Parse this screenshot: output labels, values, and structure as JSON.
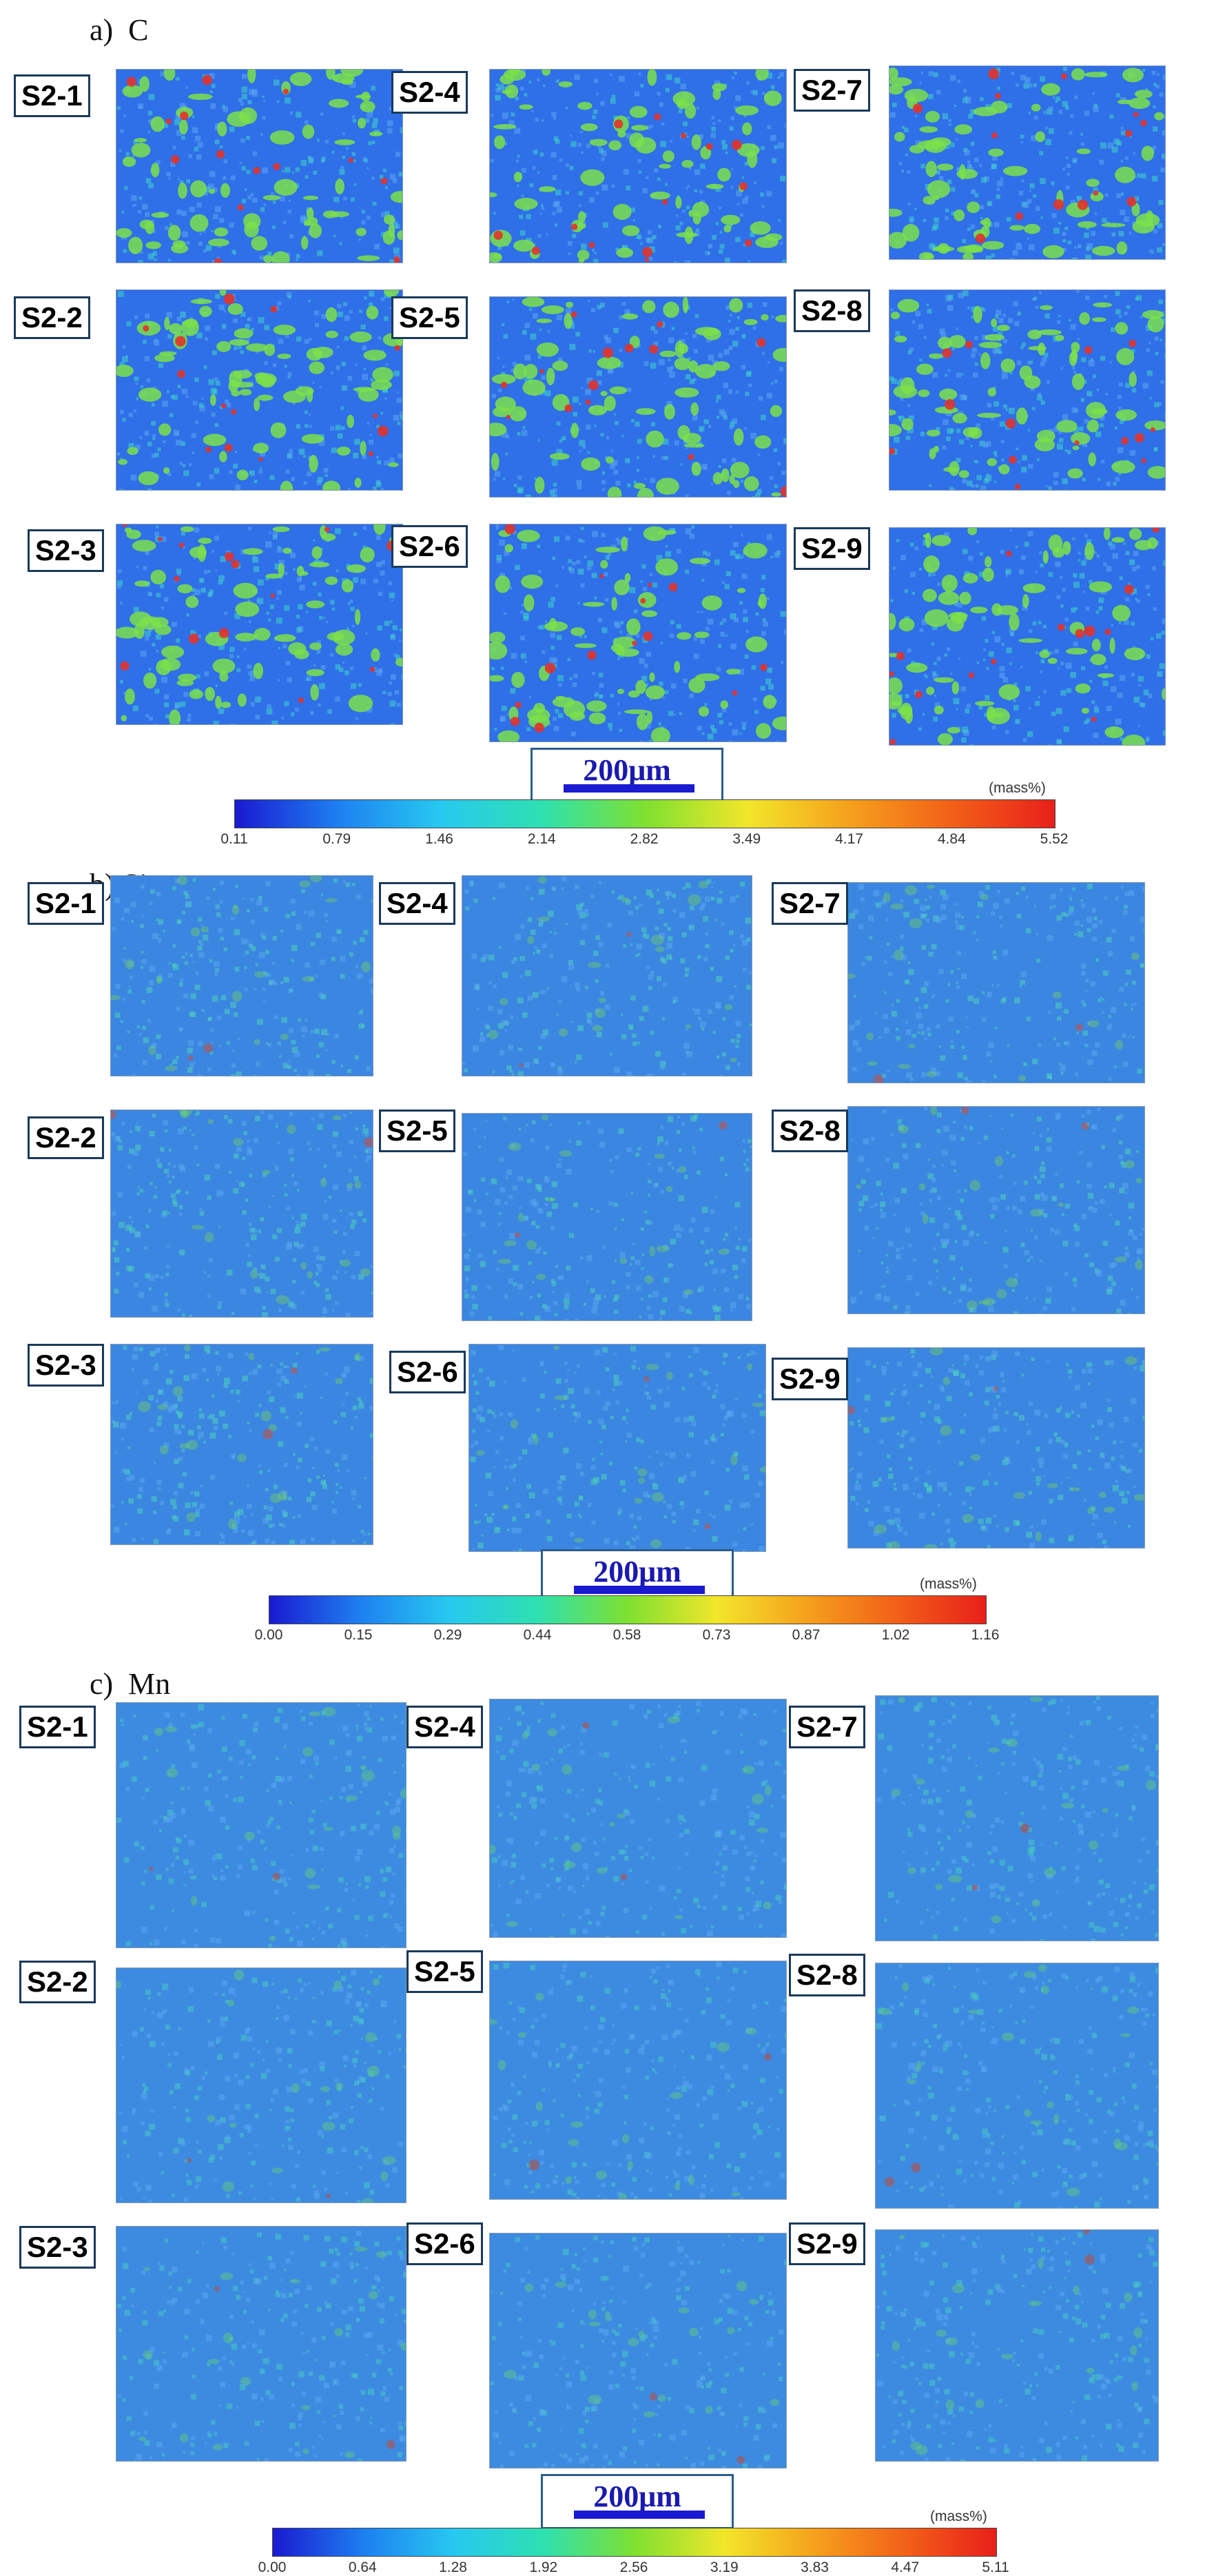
{
  "panels": [
    {
      "heading": "a)  C",
      "labels": [
        "S2-1",
        "S2-4",
        "S2-7",
        "S2-2",
        "S2-5",
        "S2-8",
        "S2-3",
        "S2-6",
        "S2-9"
      ],
      "scale_bar": "200μm",
      "colorbar": {
        "ticks": [
          "0.11",
          "0.79",
          "1.46",
          "2.14",
          "2.82",
          "3.49",
          "4.17",
          "4.84",
          "5.52"
        ],
        "unit": "(mass%)"
      },
      "colors": {
        "base": "#2f6fe8",
        "mid": "#3fd3c8",
        "phase": "#7be04a",
        "hot": "#e2332a"
      }
    },
    {
      "heading": "b) Si",
      "labels": [
        "S2-1",
        "S2-4",
        "S2-7",
        "S2-2",
        "S2-5",
        "S2-8",
        "S2-3",
        "S2-6",
        "S2-9"
      ],
      "scale_bar": "200μm",
      "colorbar": {
        "ticks": [
          "0.00",
          "0.15",
          "0.29",
          "0.44",
          "0.58",
          "0.73",
          "0.87",
          "1.02",
          "1.16"
        ],
        "unit": "(mass%)"
      },
      "colors": {
        "base": "#3b86e0",
        "mid": "#4ed0c0",
        "phase": "#6fcf6a",
        "hot": "#d94a2a"
      }
    },
    {
      "heading": "c)  Mn",
      "labels": [
        "S2-1",
        "S2-4",
        "S2-7",
        "S2-2",
        "S2-5",
        "S2-8",
        "S2-3",
        "S2-6",
        "S2-9"
      ],
      "scale_bar": "200μm",
      "colorbar": {
        "ticks": [
          "0.00",
          "0.64",
          "1.28",
          "1.92",
          "2.56",
          "3.19",
          "3.83",
          "4.47",
          "5.11"
        ],
        "unit": "(mass%)"
      },
      "colors": {
        "base": "#3d8be0",
        "mid": "#48c9c6",
        "phase": "#62cf7a",
        "hot": "#c9452c"
      }
    }
  ],
  "colorbar_gradient": [
    "#1a1ad0",
    "#1e7ff0",
    "#27c8f0",
    "#2ee0b0",
    "#7ee030",
    "#f2e62a",
    "#f5a01c",
    "#f26018",
    "#e8201a"
  ]
}
